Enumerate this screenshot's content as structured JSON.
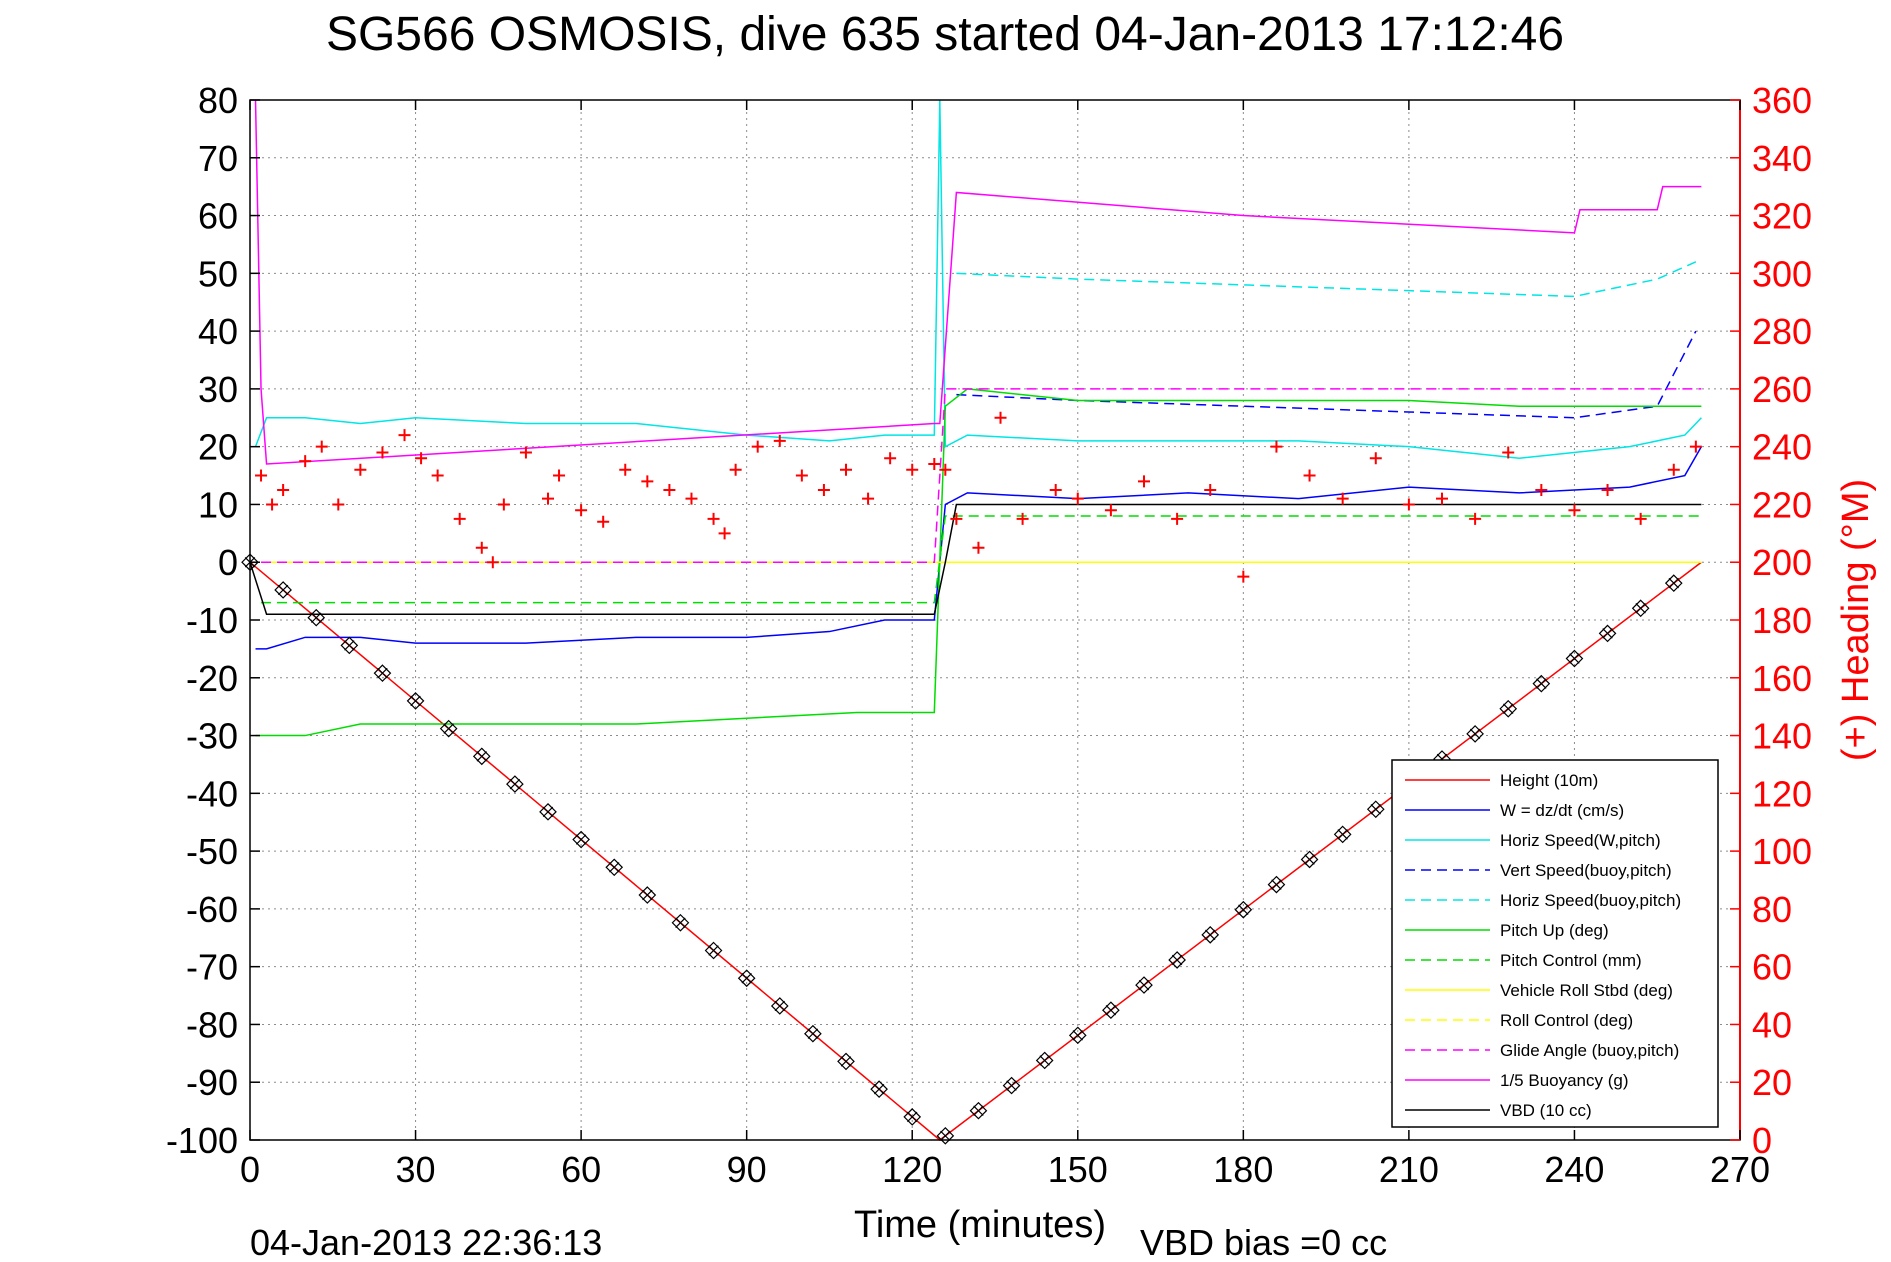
{
  "chart_data": {
    "type": "line",
    "title": "SG566 OSMOSIS, dive 635 started 04-Jan-2013 17:12:46",
    "xlabel": "Time (minutes)",
    "y2label": "(+) Heading (°M)",
    "footer_left": "04-Jan-2013 22:36:13",
    "footer_right": "VBD bias =0 cc",
    "xlim": [
      0,
      270
    ],
    "ylim": [
      -100,
      80
    ],
    "y2lim": [
      0,
      360
    ],
    "xticks": [
      0,
      30,
      60,
      90,
      120,
      150,
      180,
      210,
      240,
      270
    ],
    "yticks": [
      80,
      70,
      60,
      50,
      40,
      30,
      20,
      10,
      0,
      -10,
      -20,
      -30,
      -40,
      -50,
      -60,
      -70,
      -80,
      -90,
      -100
    ],
    "y2ticks": [
      360,
      340,
      320,
      300,
      280,
      260,
      240,
      220,
      200,
      180,
      160,
      140,
      120,
      100,
      80,
      60,
      40,
      20,
      0
    ],
    "grid": true,
    "legend_position": "lower-right",
    "colors": {
      "axis": "#000000",
      "heading_axis": "#ff0000",
      "grid": "#8c8c8c"
    },
    "series": [
      {
        "name": "Height (10m)",
        "color": "#ff0000",
        "dash": "solid",
        "markers": "diamond-x",
        "x": [
          0,
          125,
          263
        ],
        "y": [
          0,
          -100,
          0
        ]
      },
      {
        "name": "W = dz/dt (cm/s)",
        "color": "#0000ff",
        "dash": "solid",
        "x": [
          1,
          3,
          10,
          20,
          30,
          50,
          70,
          90,
          105,
          115,
          124,
          126,
          130,
          150,
          170,
          190,
          210,
          230,
          250,
          260,
          263
        ],
        "y": [
          -15,
          -15,
          -13,
          -13,
          -14,
          -14,
          -13,
          -13,
          -12,
          -10,
          -10,
          10,
          12,
          11,
          12,
          11,
          13,
          12,
          13,
          15,
          20
        ]
      },
      {
        "name": "Horiz Speed(W,pitch)",
        "color": "#00e5e5",
        "dash": "solid",
        "x": [
          1,
          3,
          10,
          20,
          30,
          50,
          70,
          90,
          105,
          115,
          124,
          125,
          126,
          130,
          150,
          170,
          190,
          210,
          230,
          250,
          260,
          263
        ],
        "y": [
          20,
          25,
          25,
          24,
          25,
          24,
          24,
          22,
          21,
          22,
          22,
          80,
          20,
          22,
          21,
          21,
          21,
          20,
          18,
          20,
          22,
          25
        ]
      },
      {
        "name": "Vert Speed(buoy,pitch)",
        "color": "#0000ff",
        "dash": "dashed",
        "x": [
          128,
          150,
          180,
          210,
          240,
          255,
          262
        ],
        "y": [
          29,
          28,
          27,
          26,
          25,
          27,
          40
        ]
      },
      {
        "name": "Horiz Speed(buoy,pitch)",
        "color": "#00e5e5",
        "dash": "dashed",
        "x": [
          128,
          150,
          180,
          210,
          240,
          255,
          262
        ],
        "y": [
          50,
          49,
          48,
          47,
          46,
          49,
          52
        ]
      },
      {
        "name": "Pitch Up (deg)",
        "color": "#00dd00",
        "dash": "solid",
        "x": [
          1,
          3,
          10,
          20,
          30,
          50,
          70,
          90,
          110,
          124,
          126,
          130,
          150,
          170,
          190,
          210,
          230,
          250,
          260,
          263
        ],
        "y": [
          -30,
          -30,
          -30,
          -28,
          -28,
          -28,
          -28,
          -27,
          -26,
          -26,
          27,
          30,
          28,
          28,
          28,
          28,
          27,
          27,
          27,
          27
        ]
      },
      {
        "name": "Pitch Control (mm)",
        "color": "#00dd00",
        "dash": "dashed",
        "x": [
          2,
          124,
          126,
          263
        ],
        "y": [
          -7,
          -7,
          8,
          8
        ]
      },
      {
        "name": "Vehicle Roll Stbd (deg)",
        "color": "#ffff00",
        "dash": "solid",
        "x": [
          2,
          10,
          30,
          60,
          90,
          124,
          126,
          160,
          200,
          240,
          263
        ],
        "y": [
          0,
          0,
          0,
          0,
          0,
          0,
          0,
          0,
          0,
          0,
          0
        ]
      },
      {
        "name": "Roll Control (deg)",
        "color": "#ffff00",
        "dash": "dashed",
        "x": [
          2,
          124,
          126,
          263
        ],
        "y": [
          0,
          0,
          0,
          0
        ]
      },
      {
        "name": "Glide Angle (buoy,pitch)",
        "color": "#ff00ff",
        "dash": "dashed",
        "x": [
          2,
          124,
          126,
          263
        ],
        "y": [
          0,
          0,
          30,
          30
        ]
      },
      {
        "name": "1/5 Buoyancy (g)",
        "color": "#ff00ff",
        "dash": "solid",
        "x": [
          1,
          2,
          3,
          124,
          125,
          128,
          180,
          240,
          241,
          255,
          256,
          263
        ],
        "y": [
          80,
          30,
          17,
          24,
          24,
          64,
          60,
          57,
          61,
          61,
          65,
          65
        ]
      },
      {
        "name": "VBD (10 cc)",
        "color": "#000000",
        "dash": "solid",
        "x": [
          0,
          3,
          124,
          126,
          128,
          263
        ],
        "y": [
          0,
          -9,
          -9,
          0,
          10,
          10
        ]
      }
    ],
    "heading_series": {
      "name": "Heading",
      "color": "#ff0000",
      "marker": "+",
      "axis": "right",
      "x": [
        2,
        4,
        6,
        10,
        13,
        16,
        20,
        24,
        28,
        31,
        34,
        38,
        42,
        44,
        46,
        50,
        54,
        56,
        60,
        64,
        68,
        72,
        76,
        80,
        84,
        86,
        88,
        92,
        96,
        100,
        104,
        108,
        112,
        116,
        120,
        124,
        126,
        128,
        132,
        136,
        140,
        146,
        150,
        156,
        162,
        168,
        174,
        180,
        186,
        192,
        198,
        204,
        210,
        216,
        222,
        228,
        234,
        240,
        246,
        252,
        258,
        262
      ],
      "y": [
        230,
        220,
        225,
        235,
        240,
        220,
        232,
        238,
        244,
        236,
        230,
        215,
        205,
        200,
        220,
        238,
        222,
        230,
        218,
        214,
        232,
        228,
        225,
        222,
        215,
        210,
        232,
        240,
        242,
        230,
        225,
        232,
        222,
        236,
        232,
        234,
        232,
        215,
        205,
        250,
        215,
        225,
        222,
        218,
        228,
        215,
        225,
        195,
        240,
        230,
        222,
        236,
        220,
        222,
        215,
        238,
        225,
        218,
        225,
        215,
        232,
        240
      ]
    }
  }
}
